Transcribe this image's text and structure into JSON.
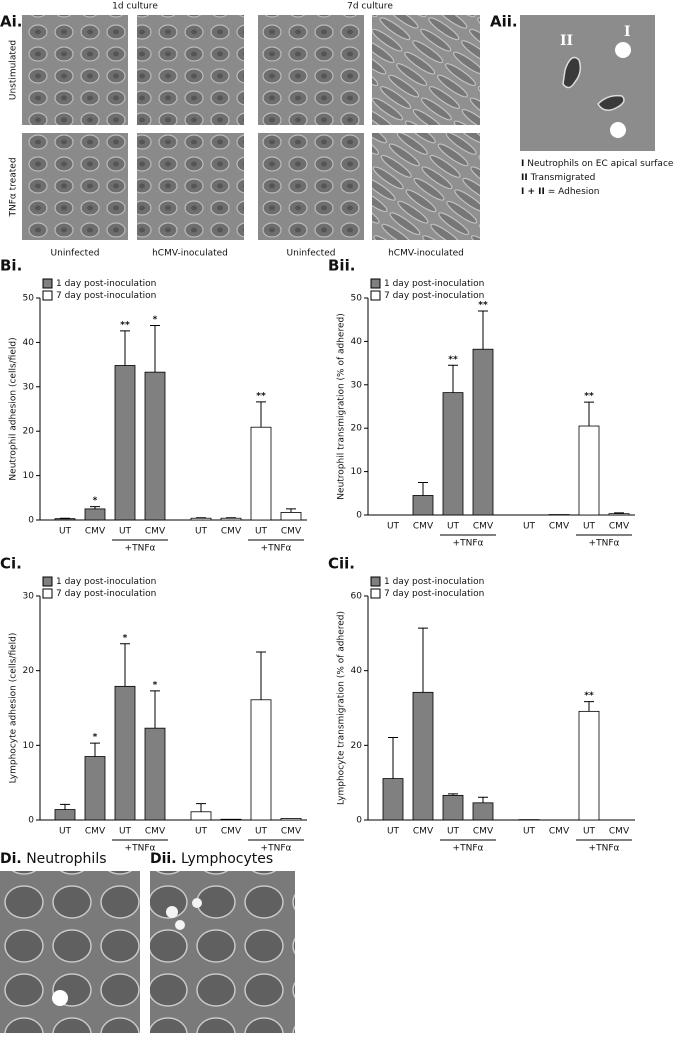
{
  "panels": {
    "Ai": {
      "label": "Ai.",
      "columns": [
        "1d culture",
        "7d culture"
      ],
      "rows": [
        "Unstimulated",
        "TNFα treated"
      ],
      "captions": [
        "Uninfected",
        "hCMV-inoculated",
        "Uninfected",
        "hCMV-inoculated"
      ]
    },
    "Aii": {
      "label": "Aii.",
      "markers": [
        "II",
        "I"
      ],
      "legend": [
        {
          "key": "I",
          "text": "Neutrophils on EC apical surface"
        },
        {
          "key": "II",
          "text": "Transmigrated"
        },
        {
          "key": "I + II",
          "text": "= Adhesion"
        }
      ]
    },
    "Di": {
      "label": "Di.",
      "title": "Neutrophils"
    },
    "Dii": {
      "label": "Dii.",
      "title": "Lymphocytes"
    }
  },
  "chart_data": [
    {
      "type": "bar",
      "label": "Bi.",
      "ylabel": "Neutrophil adhesion (cells/field)",
      "categories": [
        "UT",
        "CMV",
        "UT",
        "CMV",
        "UT",
        "CMV",
        "UT",
        "CMV"
      ],
      "brackets": [
        "+TNFα",
        "+TNFα"
      ],
      "ylim": [
        0,
        50
      ],
      "yticks": [
        0,
        10,
        20,
        30,
        40,
        50
      ],
      "series": [
        {
          "name": "1 day post-inoculation",
          "color": "#808080",
          "values": [
            0.3,
            2.5,
            34.8,
            33.3,
            null,
            null,
            null,
            null
          ],
          "errors": [
            0.1,
            0.5,
            7.8,
            10.5,
            null,
            null,
            null,
            null
          ],
          "annotations": [
            null,
            "*",
            "**",
            "*",
            null,
            null,
            null,
            null
          ]
        },
        {
          "name": "7 day post-inoculation",
          "color": "#ffffff",
          "values": [
            null,
            null,
            null,
            null,
            0.4,
            0.4,
            20.9,
            1.7
          ],
          "errors": [
            null,
            null,
            null,
            null,
            0.1,
            0.1,
            5.7,
            0.8
          ],
          "annotations": [
            null,
            null,
            null,
            null,
            null,
            null,
            "**",
            null
          ]
        }
      ]
    },
    {
      "type": "bar",
      "label": "Bii.",
      "ylabel": "Neutrophil transmigration  (% of adhered)",
      "categories": [
        "UT",
        "CMV",
        "UT",
        "CMV",
        "UT",
        "CMV",
        "UT",
        "CMV"
      ],
      "brackets": [
        "+TNFα",
        "+TNFα"
      ],
      "ylim": [
        0,
        50
      ],
      "yticks": [
        0,
        10,
        20,
        30,
        40,
        50
      ],
      "series": [
        {
          "name": "1 day post-inoculation",
          "color": "#808080",
          "values": [
            0,
            4.5,
            28.2,
            38.2,
            null,
            null,
            null,
            null
          ],
          "errors": [
            null,
            3,
            6.3,
            8.8,
            null,
            null,
            null,
            null
          ],
          "annotations": [
            null,
            null,
            "**",
            "**",
            null,
            null,
            null,
            null
          ]
        },
        {
          "name": "7 day post-inoculation",
          "color": "#ffffff",
          "values": [
            null,
            null,
            null,
            null,
            0,
            0.1,
            20.5,
            0.3
          ],
          "errors": [
            null,
            null,
            null,
            null,
            null,
            null,
            5.5,
            0.2
          ],
          "annotations": [
            null,
            null,
            null,
            null,
            null,
            null,
            "**",
            null
          ]
        }
      ]
    },
    {
      "type": "bar",
      "label": "Ci.",
      "ylabel": "Lymphocyte adhesion (cells/field)",
      "categories": [
        "UT",
        "CMV",
        "UT",
        "CMV",
        "UT",
        "CMV",
        "UT",
        "CMV"
      ],
      "brackets": [
        "+TNFα",
        "+TNFα"
      ],
      "ylim": [
        0,
        30
      ],
      "yticks": [
        0,
        10,
        20,
        30
      ],
      "series": [
        {
          "name": "1 day post-inoculation",
          "color": "#808080",
          "values": [
            1.4,
            8.5,
            17.9,
            12.3,
            null,
            null,
            null,
            null
          ],
          "errors": [
            0.7,
            1.8,
            5.7,
            5,
            null,
            null,
            null,
            null
          ],
          "annotations": [
            null,
            "*",
            "*",
            "*",
            null,
            null,
            null,
            null
          ]
        },
        {
          "name": "7 day post-inoculation",
          "color": "#ffffff",
          "values": [
            null,
            null,
            null,
            null,
            1.1,
            0.1,
            16.1,
            0.2
          ],
          "errors": [
            null,
            null,
            null,
            null,
            1.1,
            null,
            6.4,
            null
          ],
          "annotations": [
            null,
            null,
            null,
            null,
            null,
            null,
            null,
            null
          ]
        }
      ]
    },
    {
      "type": "bar",
      "label": "Cii.",
      "ylabel": "Lymphocyte transmigration  (% of adhered)",
      "categories": [
        "UT",
        "CMV",
        "UT",
        "CMV",
        "UT",
        "CMV",
        "UT",
        "CMV"
      ],
      "brackets": [
        "+TNFα",
        "+TNFα"
      ],
      "ylim": [
        0,
        60
      ],
      "yticks": [
        0,
        20,
        40,
        60
      ],
      "series": [
        {
          "name": "1 day post-inoculation",
          "color": "#808080",
          "values": [
            11.1,
            34.2,
            6.6,
            4.6,
            null,
            null,
            null,
            null
          ],
          "errors": [
            11,
            17.2,
            0.4,
            1.5,
            null,
            null,
            null,
            null
          ],
          "annotations": [
            null,
            null,
            null,
            null,
            null,
            null,
            null,
            null
          ]
        },
        {
          "name": "7 day post-inoculation",
          "color": "#ffffff",
          "values": [
            null,
            null,
            null,
            null,
            0.1,
            0,
            29.1,
            0
          ],
          "errors": [
            null,
            null,
            null,
            null,
            null,
            null,
            2.6,
            null
          ],
          "annotations": [
            null,
            null,
            null,
            null,
            null,
            null,
            "**",
            null
          ]
        }
      ]
    }
  ]
}
